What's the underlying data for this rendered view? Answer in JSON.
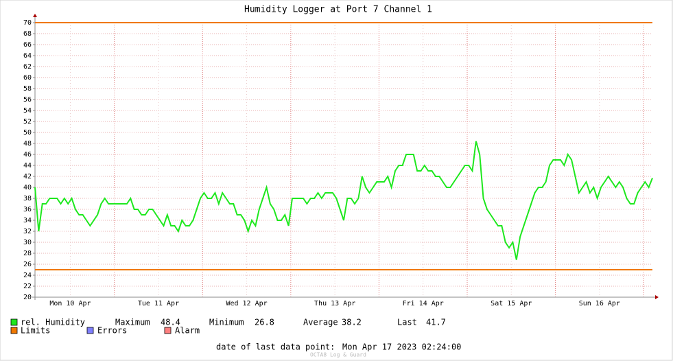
{
  "chart_data": {
    "type": "line",
    "title": "Humidity Logger at Port 7 Channel 1",
    "series": [
      {
        "name": "rel. Humidity",
        "color": "#1ee81e",
        "values": [
          40,
          32,
          37,
          37,
          38,
          38,
          38,
          37,
          38,
          37,
          38,
          36,
          35,
          35,
          34,
          33,
          34,
          35,
          37,
          38,
          37,
          37,
          37,
          37,
          37,
          37,
          38,
          36,
          36,
          35,
          35,
          36,
          36,
          35,
          34,
          33,
          35,
          33,
          33,
          32,
          34,
          33,
          33,
          34,
          36,
          38,
          39,
          38,
          38,
          39,
          37,
          39,
          38,
          37,
          37,
          35,
          35,
          34,
          32,
          34,
          33,
          36,
          38,
          40,
          37,
          36,
          34,
          34,
          35,
          33,
          38,
          38,
          38,
          38,
          37,
          38,
          38,
          39,
          38,
          39,
          39,
          39,
          38,
          36,
          34,
          38,
          38,
          37,
          38,
          42,
          40,
          39,
          40,
          41,
          41,
          41,
          42,
          40,
          43,
          44,
          44,
          46,
          46,
          46,
          43,
          43,
          44,
          43,
          43,
          42,
          42,
          41,
          40,
          40,
          41,
          42,
          43,
          44,
          44,
          43,
          48.4,
          46,
          38,
          36,
          35,
          34,
          33,
          33,
          30,
          29,
          30,
          26.8,
          31,
          33,
          35,
          37,
          39,
          40,
          40,
          41,
          44,
          45,
          45,
          45,
          44,
          46,
          45,
          42,
          39,
          40,
          41,
          39,
          40,
          38,
          40,
          41,
          42,
          41,
          40,
          41,
          40,
          38,
          37,
          37,
          39,
          40,
          41,
          40,
          41.7
        ]
      }
    ],
    "limits": {
      "name": "Limits",
      "color": "#f07800",
      "values": [
        70,
        25
      ]
    },
    "extra_legend": [
      {
        "name": "Errors",
        "color": "#7f7fff"
      },
      {
        "name": "Alarm",
        "color": "#ff7f7f"
      }
    ],
    "stats": [
      {
        "label": "Maximum",
        "value": 48.4
      },
      {
        "label": "Minimum",
        "value": 26.8
      },
      {
        "label": "Average",
        "value": 38.2
      },
      {
        "label": "Last",
        "value": 41.7
      }
    ],
    "xlim": [
      0,
      168
    ],
    "xticks": [
      {
        "value": 9.6,
        "label": "Mon 10 Apr"
      },
      {
        "value": 33.6,
        "label": "Tue 11 Apr"
      },
      {
        "value": 57.6,
        "label": "Wed 12 Apr"
      },
      {
        "value": 81.6,
        "label": "Thu 13 Apr"
      },
      {
        "value": 105.6,
        "label": "Fri 14 Apr"
      },
      {
        "value": 129.6,
        "label": "Sat 15 Apr"
      },
      {
        "value": 153.6,
        "label": "Sun 16 Apr"
      }
    ],
    "xgrid": [
      21.6,
      45.6,
      69.6,
      93.6,
      117.6,
      141.6,
      165.6
    ],
    "ylim": [
      20,
      70
    ],
    "yticks": [
      20,
      22,
      24,
      26,
      28,
      30,
      32,
      34,
      36,
      38,
      40,
      42,
      44,
      46,
      48,
      50,
      52,
      54,
      56,
      58,
      60,
      62,
      64,
      66,
      68,
      70
    ],
    "grid": true,
    "footer": {
      "label": "date of last data point:",
      "value": "Mon Apr 17 2023 02:24:00"
    },
    "watermark": "OCTA8 Log & Guard"
  }
}
